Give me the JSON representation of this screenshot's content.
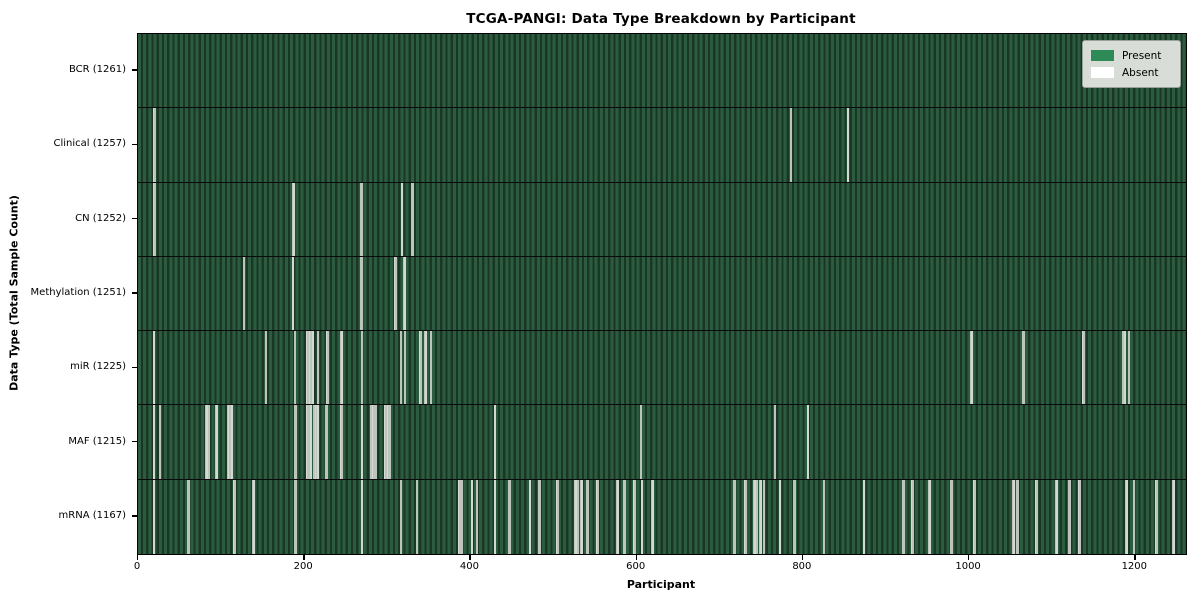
{
  "title": "TCGA-PANGI: Data Type Breakdown by Participant",
  "axes": {
    "xlabel": "Participant",
    "ylabel": "Data Type (Total Sample Count)"
  },
  "legend": {
    "present_label": "Present",
    "absent_label": "Absent"
  },
  "colors": {
    "present": "#2e8b57",
    "absent": "#ffffff",
    "row_stripe_light": "#2c5c3f",
    "row_stripe_dark": "#1a3725",
    "absent_line": "#bcc4bc",
    "legend_bg": "#e1e5df"
  },
  "chart_data": {
    "type": "heatmap",
    "title": "TCGA-PANGI: Data Type Breakdown by Participant",
    "xlabel": "Participant",
    "ylabel": "Data Type (Total Sample Count)",
    "legend": [
      "Present",
      "Absent"
    ],
    "legend_position": "upper right",
    "n_participants": 1261,
    "x_ticks": [
      0,
      200,
      400,
      600,
      800,
      1000,
      1200
    ],
    "xlim": [
      0,
      1261
    ],
    "grid": false,
    "rows": [
      {
        "label": "BCR (1261)",
        "data_type": "BCR",
        "total_sample_count": 1261,
        "absent_participants": []
      },
      {
        "label": "Clinical (1257)",
        "data_type": "Clinical",
        "total_sample_count": 1257,
        "absent_participants": [
          19,
          20,
          786,
          854
        ]
      },
      {
        "label": "CN (1252)",
        "data_type": "CN",
        "total_sample_count": 1252,
        "absent_participants": [
          19,
          20,
          187,
          188,
          268,
          269,
          318,
          330,
          331
        ]
      },
      {
        "label": "Methylation (1251)",
        "data_type": "Methylation",
        "total_sample_count": 1251,
        "absent_participants": [
          127,
          128,
          186,
          187,
          268,
          269,
          309,
          310,
          320,
          321
        ]
      },
      {
        "label": "miR (1225)",
        "data_type": "miR",
        "total_sample_count": 1225,
        "absent_participants": [
          19,
          154,
          189,
          203,
          204,
          206,
          207,
          208,
          209,
          210,
          216,
          217,
          228,
          229,
          244,
          245,
          269,
          270,
          316,
          317,
          321,
          339,
          340,
          345,
          346,
          352,
          1002,
          1003,
          1065,
          1066,
          1137,
          1138,
          1185,
          1188,
          1192,
          1193
        ]
      },
      {
        "label": "MAF (1215)",
        "data_type": "MAF",
        "total_sample_count": 1215,
        "absent_participants": [
          19,
          27,
          82,
          83,
          85,
          94,
          95,
          108,
          109,
          110,
          111,
          112,
          113,
          189,
          190,
          203,
          204,
          207,
          208,
          212,
          213,
          214,
          215,
          216,
          217,
          226,
          227,
          244,
          245,
          269,
          270,
          280,
          281,
          283,
          284,
          286,
          297,
          298,
          300,
          301,
          302,
          303,
          429,
          605,
          766,
          806
        ]
      },
      {
        "label": "mRNA (1167)",
        "data_type": "mRNA",
        "total_sample_count": 1167,
        "absent_participants": [
          19,
          60,
          61,
          116,
          117,
          138,
          139,
          189,
          190,
          269,
          316,
          336,
          386,
          387,
          390,
          402,
          408,
          429,
          430,
          447,
          448,
          472,
          483,
          484,
          504,
          505,
          526,
          527,
          530,
          533,
          534,
          540,
          541,
          552,
          553,
          576,
          577,
          585,
          586,
          597,
          598,
          606,
          607,
          618,
          619,
          620,
          717,
          718,
          730,
          731,
          741,
          742,
          745,
          748,
          750,
          753,
          772,
          773,
          789,
          790,
          825,
          826,
          873,
          874,
          921,
          922,
          931,
          932,
          952,
          953,
          978,
          979,
          1006,
          1007,
          1053,
          1054,
          1058,
          1059,
          1081,
          1082,
          1105,
          1106,
          1120,
          1121,
          1132,
          1133,
          1189,
          1190,
          1198,
          1199,
          1225,
          1226,
          1245,
          1246
        ]
      }
    ]
  }
}
